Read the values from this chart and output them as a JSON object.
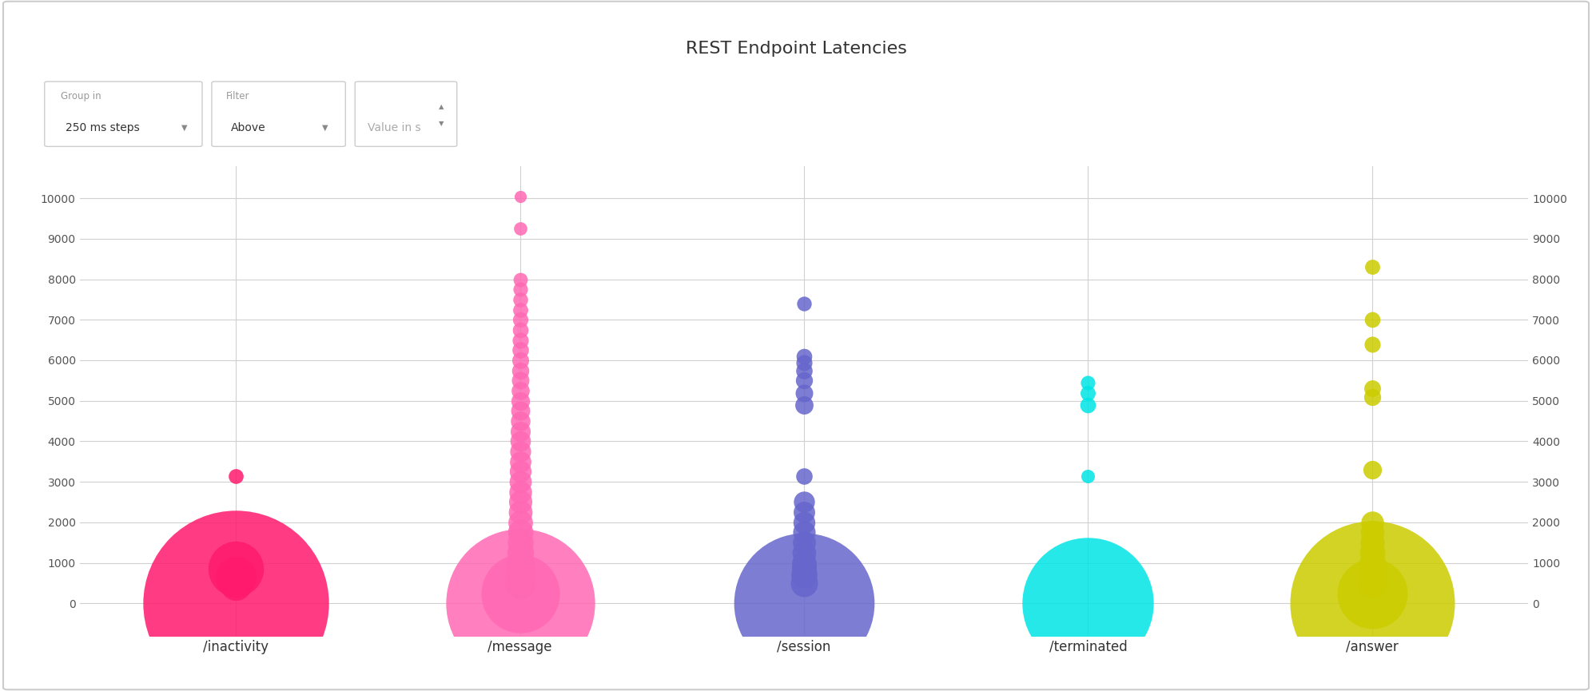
{
  "title": "REST Endpoint Latencies",
  "title_fontsize": 16,
  "background_color": "#ffffff",
  "grid_color": "#d0d0d0",
  "ylim": [
    -800,
    10800
  ],
  "yticks": [
    0,
    1000,
    2000,
    3000,
    4000,
    5000,
    6000,
    7000,
    8000,
    9000,
    10000
  ],
  "endpoints": [
    "/inactivity",
    "/message",
    "/session",
    "/terminated",
    "/answer"
  ],
  "endpoint_x": [
    1,
    2,
    3,
    4,
    5
  ],
  "endpoint_colors": [
    "#ff1a6d",
    "#ff69b4",
    "#6666cc",
    "#00e5e5",
    "#cccc00"
  ],
  "bubbles": {
    "/inactivity": [
      {
        "y": 0,
        "size": 28000
      },
      {
        "y": 850,
        "size": 2500
      },
      {
        "y": 650,
        "size": 1400
      },
      {
        "y": 450,
        "size": 800
      },
      {
        "y": 3150,
        "size": 180
      }
    ],
    "/message": [
      {
        "y": 0,
        "size": 18000
      },
      {
        "y": 250,
        "size": 5000
      },
      {
        "y": 500,
        "size": 800
      },
      {
        "y": 750,
        "size": 700
      },
      {
        "y": 1000,
        "size": 620
      },
      {
        "y": 1250,
        "size": 580
      },
      {
        "y": 1500,
        "size": 550
      },
      {
        "y": 1750,
        "size": 520
      },
      {
        "y": 2000,
        "size": 490
      },
      {
        "y": 2250,
        "size": 460
      },
      {
        "y": 2500,
        "size": 440
      },
      {
        "y": 2750,
        "size": 420
      },
      {
        "y": 3000,
        "size": 400
      },
      {
        "y": 3250,
        "size": 385
      },
      {
        "y": 3500,
        "size": 370
      },
      {
        "y": 3750,
        "size": 355
      },
      {
        "y": 4000,
        "size": 340
      },
      {
        "y": 4250,
        "size": 325
      },
      {
        "y": 4500,
        "size": 310
      },
      {
        "y": 4750,
        "size": 295
      },
      {
        "y": 5000,
        "size": 280
      },
      {
        "y": 5250,
        "size": 265
      },
      {
        "y": 5500,
        "size": 250
      },
      {
        "y": 5750,
        "size": 240
      },
      {
        "y": 6000,
        "size": 230
      },
      {
        "y": 6250,
        "size": 220
      },
      {
        "y": 6500,
        "size": 210
      },
      {
        "y": 6750,
        "size": 200
      },
      {
        "y": 7000,
        "size": 192
      },
      {
        "y": 7250,
        "size": 185
      },
      {
        "y": 7500,
        "size": 178
      },
      {
        "y": 7750,
        "size": 172
      },
      {
        "y": 8000,
        "size": 166
      },
      {
        "y": 9250,
        "size": 145
      },
      {
        "y": 10050,
        "size": 120
      }
    ],
    "/session": [
      {
        "y": 0,
        "size": 16000
      },
      {
        "y": 500,
        "size": 600
      },
      {
        "y": 700,
        "size": 550
      },
      {
        "y": 900,
        "size": 500
      },
      {
        "y": 750,
        "size": 520
      },
      {
        "y": 1000,
        "size": 490
      },
      {
        "y": 1250,
        "size": 460
      },
      {
        "y": 1500,
        "size": 430
      },
      {
        "y": 1750,
        "size": 410
      },
      {
        "y": 2000,
        "size": 390
      },
      {
        "y": 2250,
        "size": 375
      },
      {
        "y": 2500,
        "size": 360
      },
      {
        "y": 3150,
        "size": 220
      },
      {
        "y": 4900,
        "size": 270
      },
      {
        "y": 5200,
        "size": 250
      },
      {
        "y": 5500,
        "size": 235
      },
      {
        "y": 5750,
        "size": 220
      },
      {
        "y": 5950,
        "size": 210
      },
      {
        "y": 6100,
        "size": 200
      },
      {
        "y": 7400,
        "size": 175
      }
    ],
    "/terminated": [
      {
        "y": 0,
        "size": 14000
      },
      {
        "y": 3150,
        "size": 150
      },
      {
        "y": 4900,
        "size": 200
      },
      {
        "y": 5200,
        "size": 185
      },
      {
        "y": 5450,
        "size": 170
      }
    ],
    "/answer": [
      {
        "y": 0,
        "size": 22000
      },
      {
        "y": 250,
        "size": 4000
      },
      {
        "y": 500,
        "size": 700
      },
      {
        "y": 750,
        "size": 630
      },
      {
        "y": 1000,
        "size": 570
      },
      {
        "y": 1250,
        "size": 520
      },
      {
        "y": 1500,
        "size": 480
      },
      {
        "y": 1750,
        "size": 450
      },
      {
        "y": 2000,
        "size": 420
      },
      {
        "y": 3300,
        "size": 280
      },
      {
        "y": 5100,
        "size": 235
      },
      {
        "y": 5300,
        "size": 225
      },
      {
        "y": 6400,
        "size": 210
      },
      {
        "y": 7000,
        "size": 200
      },
      {
        "y": 8300,
        "size": 185
      }
    ]
  },
  "controls": {
    "group_label": "Group in",
    "group_value": "250 ms steps",
    "filter_label": "Filter",
    "filter_value": "Above",
    "input_label": "Value in s"
  }
}
